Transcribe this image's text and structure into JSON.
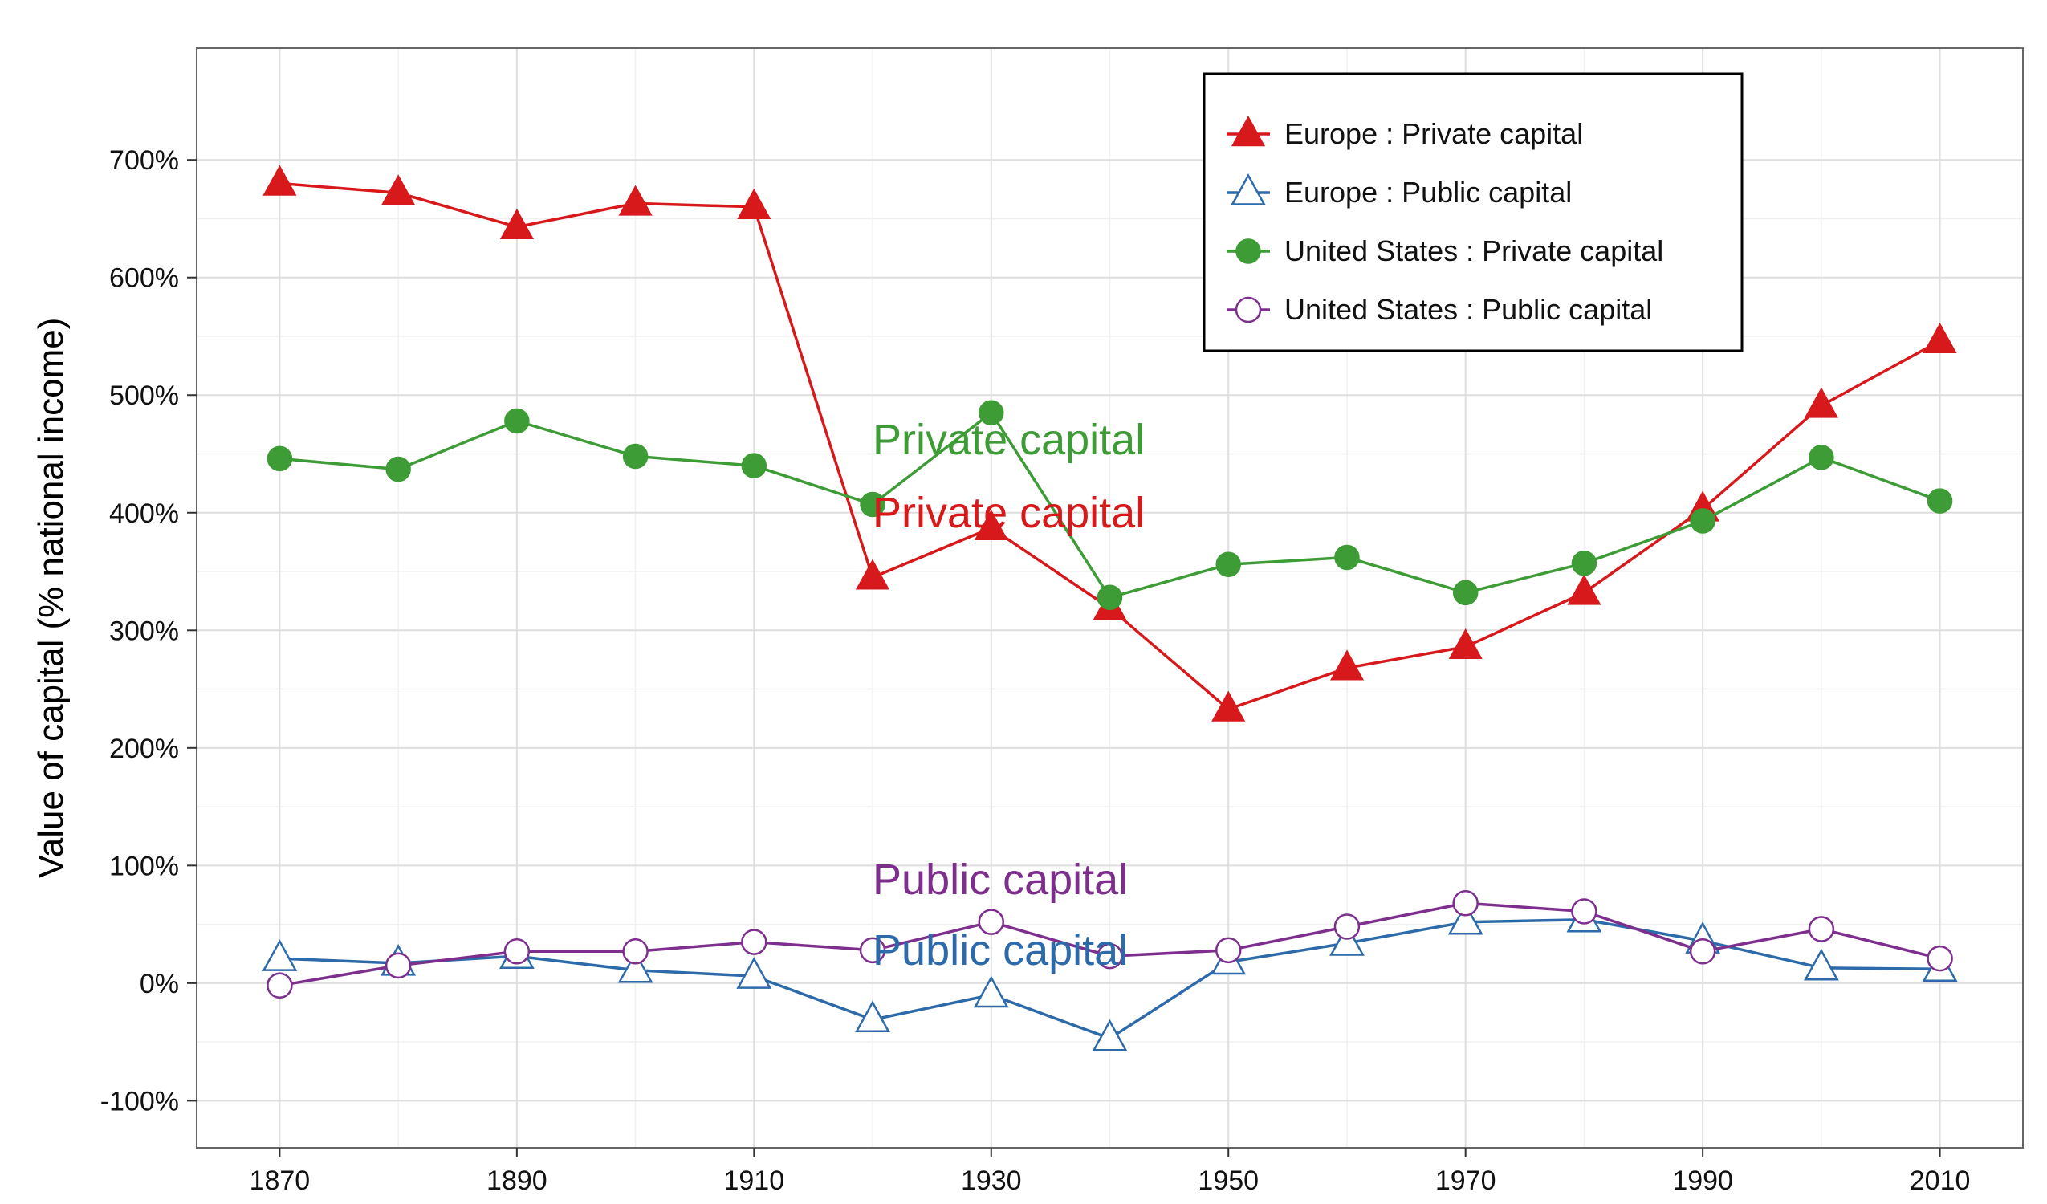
{
  "chart_data": {
    "type": "line",
    "ylabel": "Value of capital (% national income)",
    "xlabel": "",
    "xlim": [
      1863,
      2017
    ],
    "ylim": [
      -140,
      795
    ],
    "x_ticks": [
      1870,
      1890,
      1910,
      1930,
      1950,
      1970,
      1990,
      2010
    ],
    "x_tick_labels": [
      "1870",
      "1890",
      "1910",
      "1930",
      "1950",
      "1970",
      "1990",
      "2010"
    ],
    "y_ticks": [
      -100,
      0,
      100,
      200,
      300,
      400,
      500,
      600,
      700
    ],
    "y_tick_labels": [
      "-100%",
      "0%",
      "100%",
      "200%",
      "300%",
      "400%",
      "500%",
      "600%",
      "700%"
    ],
    "grid": true,
    "legend_position": "top-right",
    "x": [
      1870,
      1880,
      1890,
      1900,
      1910,
      1920,
      1930,
      1940,
      1950,
      1960,
      1970,
      1980,
      1990,
      2000,
      2010
    ],
    "series": [
      {
        "name": "Europe : Private capital",
        "color": "#d7191c",
        "marker": "triangle-filled",
        "values": [
          680,
          672,
          643,
          663,
          660,
          345,
          387,
          319,
          233,
          268,
          286,
          332,
          403,
          491,
          546
        ]
      },
      {
        "name": "Europe : Public capital",
        "color": "#2c6aa9",
        "marker": "triangle-open",
        "values": [
          21,
          17,
          23,
          11,
          6,
          -31,
          -10,
          -47,
          18,
          34,
          52,
          54,
          36,
          13,
          12
        ]
      },
      {
        "name": "United States : Private capital",
        "color": "#3d9c35",
        "marker": "circle-filled",
        "values": [
          446,
          437,
          478,
          448,
          440,
          407,
          485,
          328,
          356,
          362,
          332,
          357,
          393,
          447,
          410
        ]
      },
      {
        "name": "United States : Public capital",
        "color": "#7e2f8e",
        "marker": "circle-open",
        "values": [
          -2,
          15,
          27,
          27,
          35,
          28,
          52,
          23,
          28,
          48,
          68,
          61,
          27,
          46,
          21
        ]
      }
    ],
    "annotations": [
      {
        "text": "Private capital",
        "x": 1920,
        "y": 462,
        "color": "#3d9c35"
      },
      {
        "text": "Private capital",
        "x": 1920,
        "y": 400,
        "color": "#d7191c"
      },
      {
        "text": "Public capital",
        "x": 1920,
        "y": 88,
        "color": "#7e2f8e"
      },
      {
        "text": "Public capital",
        "x": 1920,
        "y": 28,
        "color": "#2c6aa9"
      }
    ]
  }
}
